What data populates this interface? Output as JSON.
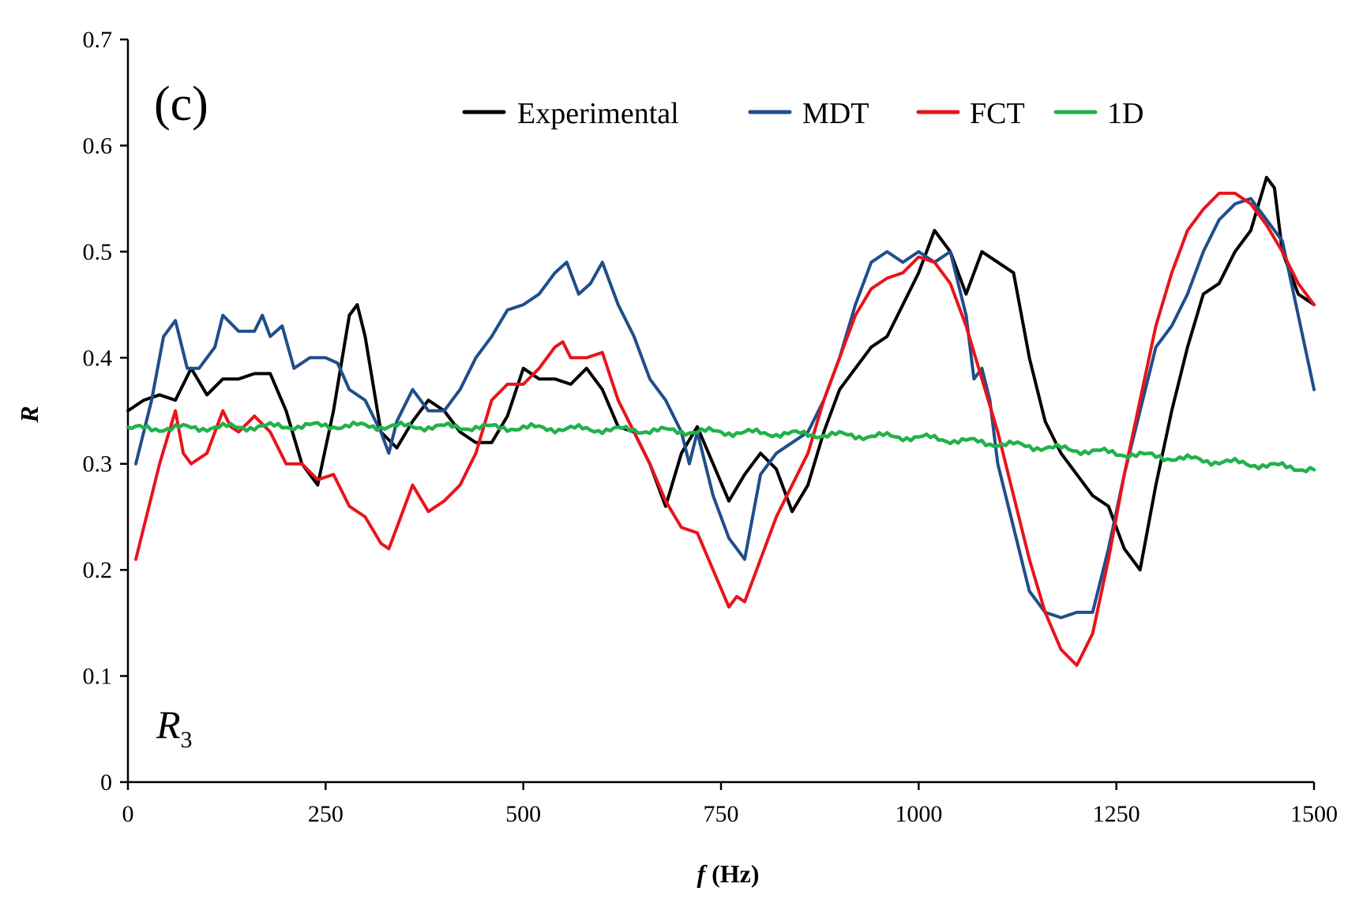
{
  "chart_data": {
    "type": "line",
    "title": "",
    "panel_label": "(c)",
    "annotation": {
      "main": "R",
      "sub": "3"
    },
    "xlabel": {
      "italic": "f",
      "rest": " (Hz)"
    },
    "ylabel": "R",
    "xlim": [
      0,
      1500
    ],
    "ylim": [
      0,
      0.7
    ],
    "x_ticks": [
      0,
      250,
      500,
      750,
      1000,
      1250,
      1500
    ],
    "x_tick_labels": [
      "0",
      "250",
      "500",
      "750",
      "1000",
      "1250",
      "1500"
    ],
    "y_ticks": [
      0,
      0.1,
      0.2,
      0.3,
      0.4,
      0.5,
      0.6,
      0.7
    ],
    "y_tick_labels": [
      "0",
      "0.1",
      "0.2",
      "0.3",
      "0.4",
      "0.5",
      "0.6",
      "0.7"
    ],
    "grid": false,
    "legend_position": "top",
    "series": [
      {
        "name": "Experimental",
        "color": "#000000",
        "x": [
          0,
          20,
          40,
          60,
          80,
          100,
          120,
          140,
          160,
          180,
          200,
          220,
          240,
          260,
          280,
          290,
          300,
          320,
          340,
          360,
          380,
          400,
          420,
          440,
          460,
          480,
          500,
          520,
          540,
          560,
          580,
          600,
          620,
          640,
          660,
          680,
          700,
          720,
          740,
          760,
          780,
          800,
          820,
          840,
          860,
          880,
          900,
          920,
          940,
          960,
          980,
          1000,
          1020,
          1040,
          1060,
          1080,
          1100,
          1120,
          1140,
          1160,
          1180,
          1200,
          1220,
          1240,
          1260,
          1280,
          1300,
          1320,
          1340,
          1360,
          1380,
          1400,
          1420,
          1440,
          1450,
          1460,
          1480,
          1500
        ],
        "y": [
          0.35,
          0.36,
          0.365,
          0.36,
          0.39,
          0.365,
          0.38,
          0.38,
          0.385,
          0.385,
          0.35,
          0.3,
          0.28,
          0.35,
          0.44,
          0.45,
          0.42,
          0.33,
          0.315,
          0.34,
          0.36,
          0.35,
          0.33,
          0.32,
          0.32,
          0.345,
          0.39,
          0.38,
          0.38,
          0.375,
          0.39,
          0.37,
          0.335,
          0.33,
          0.3,
          0.26,
          0.31,
          0.335,
          0.3,
          0.265,
          0.29,
          0.31,
          0.295,
          0.255,
          0.28,
          0.33,
          0.37,
          0.39,
          0.41,
          0.42,
          0.45,
          0.48,
          0.52,
          0.5,
          0.46,
          0.5,
          0.49,
          0.48,
          0.4,
          0.34,
          0.31,
          0.29,
          0.27,
          0.26,
          0.22,
          0.2,
          0.28,
          0.35,
          0.41,
          0.46,
          0.47,
          0.5,
          0.52,
          0.57,
          0.56,
          0.5,
          0.46,
          0.45
        ]
      },
      {
        "name": "MDT",
        "color": "#1f4e8a",
        "x": [
          10,
          30,
          45,
          60,
          75,
          90,
          110,
          120,
          140,
          160,
          170,
          180,
          195,
          210,
          230,
          250,
          265,
          280,
          300,
          320,
          330,
          340,
          360,
          380,
          400,
          420,
          440,
          460,
          480,
          500,
          520,
          540,
          555,
          570,
          585,
          600,
          620,
          640,
          660,
          680,
          700,
          710,
          720,
          740,
          760,
          780,
          800,
          820,
          840,
          860,
          880,
          900,
          920,
          940,
          960,
          980,
          1000,
          1020,
          1040,
          1060,
          1070,
          1080,
          1090,
          1100,
          1120,
          1140,
          1160,
          1180,
          1200,
          1220,
          1240,
          1260,
          1280,
          1300,
          1320,
          1340,
          1360,
          1380,
          1400,
          1420,
          1440,
          1460,
          1480,
          1500
        ],
        "y": [
          0.3,
          0.36,
          0.42,
          0.435,
          0.39,
          0.39,
          0.41,
          0.44,
          0.425,
          0.425,
          0.44,
          0.42,
          0.43,
          0.39,
          0.4,
          0.4,
          0.395,
          0.37,
          0.36,
          0.33,
          0.31,
          0.34,
          0.37,
          0.35,
          0.35,
          0.37,
          0.4,
          0.42,
          0.445,
          0.45,
          0.46,
          0.48,
          0.49,
          0.46,
          0.47,
          0.49,
          0.45,
          0.42,
          0.38,
          0.36,
          0.33,
          0.3,
          0.33,
          0.27,
          0.23,
          0.21,
          0.29,
          0.31,
          0.32,
          0.33,
          0.36,
          0.4,
          0.45,
          0.49,
          0.5,
          0.49,
          0.5,
          0.49,
          0.5,
          0.44,
          0.38,
          0.39,
          0.36,
          0.3,
          0.24,
          0.18,
          0.16,
          0.155,
          0.16,
          0.16,
          0.22,
          0.29,
          0.35,
          0.41,
          0.43,
          0.46,
          0.5,
          0.53,
          0.545,
          0.55,
          0.53,
          0.51,
          0.44,
          0.37
        ]
      },
      {
        "name": "FCT",
        "color": "#e8141c",
        "x": [
          10,
          20,
          40,
          60,
          70,
          80,
          100,
          120,
          130,
          140,
          160,
          180,
          200,
          220,
          240,
          260,
          280,
          300,
          320,
          330,
          340,
          360,
          380,
          400,
          420,
          440,
          460,
          480,
          500,
          520,
          540,
          550,
          560,
          580,
          600,
          620,
          640,
          660,
          680,
          700,
          720,
          740,
          760,
          770,
          780,
          800,
          820,
          840,
          860,
          880,
          900,
          920,
          940,
          960,
          980,
          1000,
          1020,
          1040,
          1060,
          1080,
          1100,
          1120,
          1140,
          1160,
          1180,
          1200,
          1220,
          1240,
          1260,
          1280,
          1300,
          1320,
          1340,
          1360,
          1380,
          1400,
          1420,
          1440,
          1460,
          1480,
          1500
        ],
        "y": [
          0.21,
          0.24,
          0.3,
          0.35,
          0.31,
          0.3,
          0.31,
          0.35,
          0.335,
          0.33,
          0.345,
          0.33,
          0.3,
          0.3,
          0.285,
          0.29,
          0.26,
          0.25,
          0.225,
          0.22,
          0.24,
          0.28,
          0.255,
          0.265,
          0.28,
          0.31,
          0.36,
          0.375,
          0.375,
          0.39,
          0.41,
          0.415,
          0.4,
          0.4,
          0.405,
          0.36,
          0.33,
          0.3,
          0.265,
          0.24,
          0.235,
          0.2,
          0.165,
          0.175,
          0.17,
          0.21,
          0.25,
          0.28,
          0.31,
          0.36,
          0.4,
          0.44,
          0.465,
          0.475,
          0.48,
          0.495,
          0.49,
          0.47,
          0.43,
          0.38,
          0.33,
          0.27,
          0.21,
          0.16,
          0.125,
          0.11,
          0.14,
          0.21,
          0.29,
          0.36,
          0.43,
          0.48,
          0.52,
          0.54,
          0.555,
          0.555,
          0.545,
          0.525,
          0.5,
          0.47,
          0.45
        ]
      },
      {
        "name": "1D",
        "color": "#22b14c",
        "x": [
          0,
          250,
          500,
          750,
          1000,
          1250,
          1500
        ],
        "y": [
          0.333,
          0.336,
          0.334,
          0.33,
          0.325,
          0.31,
          0.295
        ],
        "noise_amplitude": 0.004
      }
    ]
  }
}
